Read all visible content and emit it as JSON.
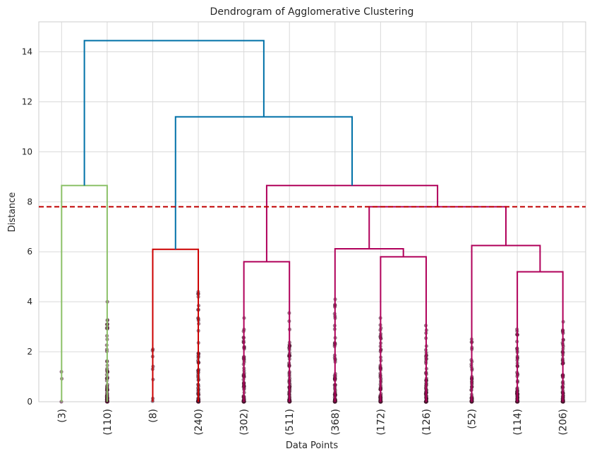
{
  "chart_data": {
    "type": "dendrogram",
    "title": "Dendrogram of Agglomerative Clustering",
    "xlabel": "Data Points",
    "ylabel": "Distance",
    "ylim": [
      0,
      15.2
    ],
    "yticks": [
      "0",
      "2",
      "4",
      "6",
      "8",
      "10",
      "12",
      "14"
    ],
    "grid": true,
    "leaves": [
      "(3)",
      "(110)",
      "(8)",
      "(240)",
      "(302)",
      "(511)",
      "(368)",
      "(172)",
      "(126)",
      "(52)",
      "(114)",
      "(206)"
    ],
    "threshold": {
      "distance": 7.8,
      "color": "#c00000",
      "style": "dashed"
    },
    "colors": {
      "green": "#8cc168",
      "red": "#cc0000",
      "magenta": "#b0005a",
      "blue": "#0071a8"
    },
    "links": [
      {
        "from": [
          "(3)",
          "(110)"
        ],
        "height": 8.65,
        "color": "green"
      },
      {
        "from": [
          "(8)",
          "(240)"
        ],
        "height": 6.1,
        "color": "red"
      },
      {
        "from": [
          "(302)",
          "(511)"
        ],
        "height": 5.6,
        "color": "magenta"
      },
      {
        "from": [
          "(172)",
          "(126)"
        ],
        "height": 5.8,
        "color": "magenta"
      },
      {
        "from": [
          "(368)",
          "(172)+(126)"
        ],
        "height": 6.12,
        "color": "magenta"
      },
      {
        "from": [
          "(114)",
          "(206)"
        ],
        "height": 5.2,
        "color": "magenta"
      },
      {
        "from": [
          "(52)",
          "(114)+(206)"
        ],
        "height": 6.25,
        "color": "magenta"
      },
      {
        "from": [
          "(368)..(126)",
          "(52)..(206)"
        ],
        "height": 7.8,
        "color": "magenta"
      },
      {
        "from": [
          "(302)+(511)",
          "(368)..(206)"
        ],
        "height": 8.65,
        "color": "magenta"
      },
      {
        "from": [
          "(8)+(240)",
          "(302)..(206)"
        ],
        "height": 11.4,
        "color": "blue"
      },
      {
        "from": [
          "(3)+(110)",
          "(8)..(206)"
        ],
        "height": 14.45,
        "color": "blue"
      }
    ],
    "leaf_points_color": "#4a1530"
  }
}
